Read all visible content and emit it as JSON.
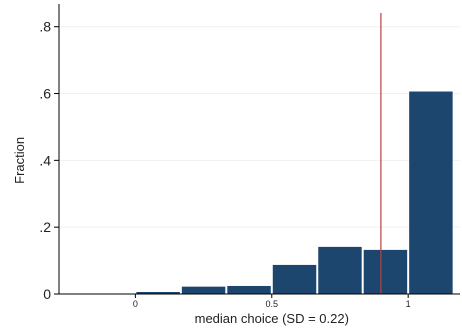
{
  "chart_data": {
    "type": "bar",
    "title": "",
    "xlabel": "median choice (SD = 0.22)",
    "ylabel": "Fraction",
    "bins": [
      {
        "left": 0.0,
        "right": 0.1667,
        "value": 0.006
      },
      {
        "left": 0.1667,
        "right": 0.3333,
        "value": 0.022
      },
      {
        "left": 0.3333,
        "right": 0.5,
        "value": 0.024
      },
      {
        "left": 0.5,
        "right": 0.6667,
        "value": 0.087
      },
      {
        "left": 0.6667,
        "right": 0.8333,
        "value": 0.141
      },
      {
        "left": 0.8333,
        "right": 1.0,
        "value": 0.132
      },
      {
        "left": 1.0,
        "right": 1.1667,
        "value": 0.606
      }
    ],
    "x_ticks": [
      {
        "value": 0.0,
        "label": "0"
      },
      {
        "value": 0.5,
        "label": "0.5"
      },
      {
        "value": 1.0,
        "label": "1"
      }
    ],
    "y_ticks": [
      {
        "value": 0.0,
        "label": "0"
      },
      {
        "value": 0.2,
        "label": ".2"
      },
      {
        "value": 0.4,
        "label": ".4"
      },
      {
        "value": 0.6,
        "label": ".6"
      },
      {
        "value": 0.8,
        "label": ".8"
      }
    ],
    "xlim": [
      -0.28,
      1.19
    ],
    "ylim": [
      0,
      0.85
    ],
    "reference_line": {
      "x": 0.9,
      "color": "#b5443f"
    },
    "bar_color": "#1c466d",
    "grid": true,
    "grid_color": "#eef1f3",
    "legend": "none"
  }
}
